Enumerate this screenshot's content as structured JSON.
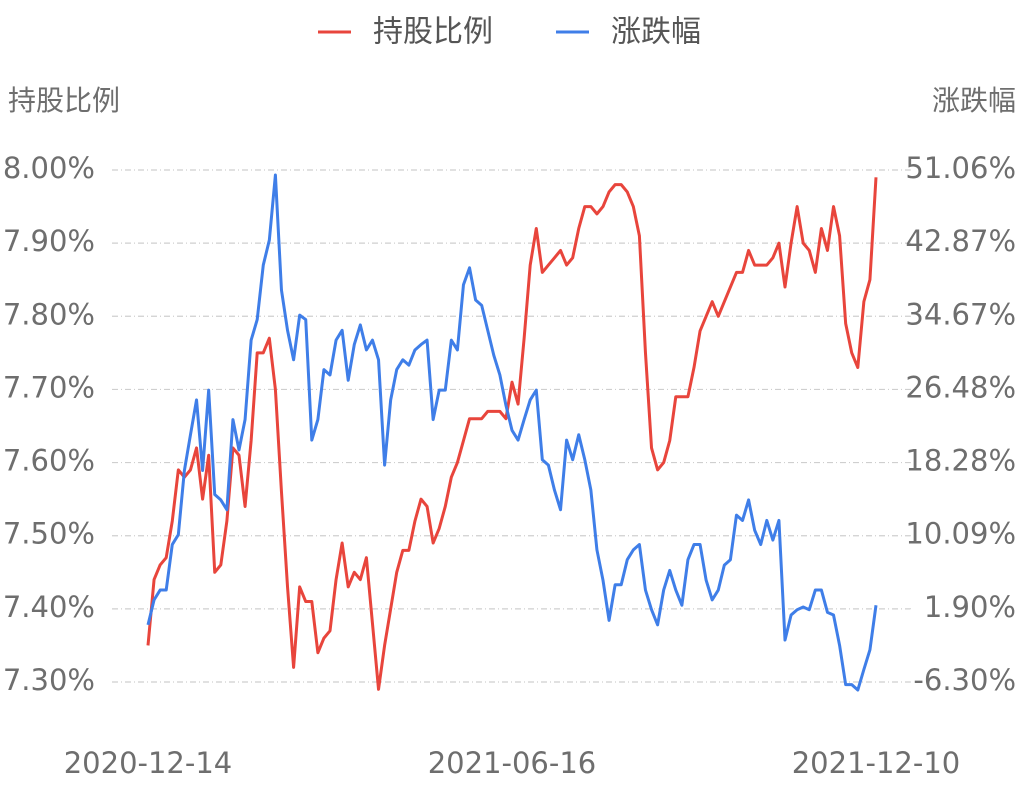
{
  "chart_data": {
    "type": "line",
    "ylabel": "持股比例",
    "y2label": "涨跌幅",
    "categories": [
      "2020-12-14",
      null,
      null,
      null,
      null,
      null,
      null,
      null,
      null,
      null,
      null,
      null,
      null,
      null,
      null,
      null,
      null,
      null,
      null,
      null,
      null,
      null,
      null,
      null,
      null,
      null,
      null,
      null,
      null,
      null,
      null,
      null,
      null,
      null,
      null,
      null,
      null,
      null,
      null,
      null,
      null,
      null,
      null,
      null,
      null,
      null,
      null,
      null,
      null,
      null,
      null,
      null,
      null,
      null,
      null,
      null,
      null,
      null,
      null,
      null,
      "2021-06-16",
      null,
      null,
      null,
      null,
      null,
      null,
      null,
      null,
      null,
      null,
      null,
      null,
      null,
      null,
      null,
      null,
      null,
      null,
      null,
      null,
      null,
      null,
      null,
      null,
      null,
      null,
      null,
      null,
      null,
      null,
      null,
      null,
      null,
      null,
      null,
      null,
      null,
      null,
      null,
      null,
      null,
      null,
      null,
      null,
      null,
      null,
      null,
      null,
      null,
      null,
      null,
      null,
      null,
      null,
      null,
      null,
      null,
      null,
      null,
      "2021-12-10"
    ],
    "series": [
      {
        "name": "持股比例",
        "color": "#e8453c",
        "axis": "y",
        "values": [
          7.35,
          7.44,
          7.46,
          7.47,
          7.52,
          7.59,
          7.58,
          7.59,
          7.62,
          7.55,
          7.61,
          7.45,
          7.46,
          7.52,
          7.62,
          7.61,
          7.54,
          7.63,
          7.75,
          7.75,
          7.77,
          7.7,
          7.56,
          7.43,
          7.32,
          7.43,
          7.41,
          7.41,
          7.34,
          7.36,
          7.37,
          7.44,
          7.49,
          7.43,
          7.45,
          7.44,
          7.47,
          7.38,
          7.29,
          7.35,
          7.4,
          7.45,
          7.48,
          7.48,
          7.52,
          7.55,
          7.54,
          7.49,
          7.51,
          7.54,
          7.58,
          7.6,
          7.63,
          7.66,
          7.66,
          7.66,
          7.67,
          7.67,
          7.67,
          7.66,
          7.71,
          7.68,
          7.77,
          7.87,
          7.92,
          7.86,
          7.87,
          7.88,
          7.89,
          7.87,
          7.88,
          7.92,
          7.95,
          7.95,
          7.94,
          7.95,
          7.97,
          7.98,
          7.98,
          7.97,
          7.95,
          7.91,
          7.75,
          7.62,
          7.59,
          7.6,
          7.63,
          7.69,
          7.69,
          7.69,
          7.73,
          7.78,
          7.8,
          7.82,
          7.8,
          7.82,
          7.84,
          7.86,
          7.86,
          7.89,
          7.87,
          7.87,
          7.87,
          7.88,
          7.9,
          7.84,
          7.9,
          7.95,
          7.9,
          7.89,
          7.86,
          7.92,
          7.89,
          7.95,
          7.91,
          7.79,
          7.75,
          7.73,
          7.82,
          7.85,
          7.99
        ]
      },
      {
        "name": "涨跌幅",
        "color": "#3f7ee8",
        "axis": "y2",
        "values": [
          0.1,
          2.9,
          4.0,
          4.0,
          9.1,
          10.2,
          17.4,
          21.4,
          25.3,
          17.4,
          26.4,
          14.7,
          14.1,
          13.0,
          23.1,
          19.7,
          23.1,
          32.0,
          34.3,
          40.4,
          43.2,
          50.5,
          37.6,
          33.1,
          29.8,
          34.8,
          34.3,
          20.8,
          23.1,
          28.7,
          28.1,
          32.0,
          33.1,
          27.5,
          31.5,
          33.7,
          30.9,
          32.0,
          29.8,
          18.0,
          25.3,
          28.7,
          29.8,
          29.2,
          30.9,
          31.5,
          32.0,
          23.1,
          26.4,
          26.4,
          32.0,
          30.9,
          38.2,
          40.1,
          36.5,
          35.9,
          33.1,
          30.3,
          28.1,
          24.7,
          21.9,
          20.8,
          23.1,
          25.3,
          26.4,
          18.6,
          18.0,
          15.2,
          13.0,
          20.8,
          18.6,
          21.4,
          18.6,
          15.2,
          8.5,
          5.1,
          0.6,
          4.6,
          4.6,
          7.4,
          8.5,
          9.1,
          4.0,
          1.8,
          0.1,
          4.0,
          6.2,
          4.0,
          2.3,
          7.4,
          9.1,
          9.1,
          5.1,
          2.9,
          4.0,
          6.8,
          7.4,
          12.4,
          11.8,
          14.1,
          10.7,
          9.1,
          11.8,
          9.6,
          11.8,
          -1.6,
          1.2,
          1.8,
          2.1,
          1.8,
          4.0,
          4.0,
          1.5,
          1.2,
          -2.2,
          -6.6,
          -6.6,
          -7.2,
          -4.9,
          -2.7,
          2.3
        ]
      }
    ],
    "ylim": [
      7.3,
      8.0
    ],
    "yticks": [
      {
        "value": 8.0,
        "label": "8.00%"
      },
      {
        "value": 7.9,
        "label": "7.90%"
      },
      {
        "value": 7.8,
        "label": "7.80%"
      },
      {
        "value": 7.7,
        "label": "7.70%"
      },
      {
        "value": 7.6,
        "label": "7.60%"
      },
      {
        "value": 7.5,
        "label": "7.50%"
      },
      {
        "value": 7.4,
        "label": "7.40%"
      },
      {
        "value": 7.3,
        "label": "7.30%"
      }
    ],
    "y2lim": [
      -6.3,
      51.06
    ],
    "y2ticks": [
      {
        "value": 51.06,
        "label": "51.06%"
      },
      {
        "value": 42.87,
        "label": "42.87%"
      },
      {
        "value": 34.67,
        "label": "34.67%"
      },
      {
        "value": 26.48,
        "label": "26.48%"
      },
      {
        "value": 18.28,
        "label": "18.28%"
      },
      {
        "value": 10.09,
        "label": "10.09%"
      },
      {
        "value": 1.9,
        "label": "1.90%"
      },
      {
        "value": -6.3,
        "label": "-6.30%"
      }
    ],
    "grid": true,
    "legend": "top"
  }
}
